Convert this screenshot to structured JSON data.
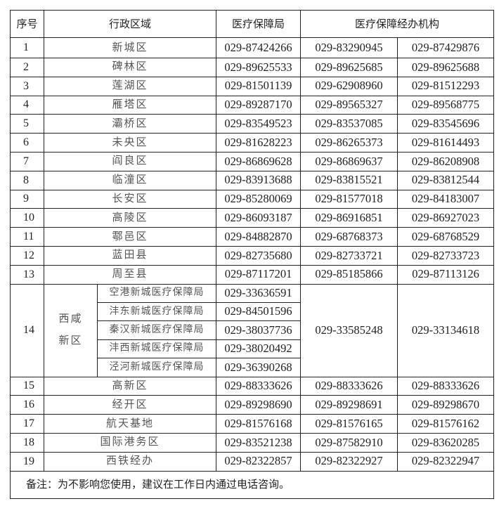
{
  "headers": {
    "index": "序号",
    "region": "行政区域",
    "bureau": "医疗保障局",
    "agency": "医疗保障经办机构"
  },
  "rows_before": [
    {
      "no": "1",
      "region": "新城区",
      "bureau": "029-87424266",
      "agency1": "029-83290945",
      "agency2": "029-87429876"
    },
    {
      "no": "2",
      "region": "碑林区",
      "bureau": "029-89625533",
      "agency1": "029-89625685",
      "agency2": "029-89625688"
    },
    {
      "no": "3",
      "region": "莲湖区",
      "bureau": "029-81501139",
      "agency1": "029-62908960",
      "agency2": "029-81512293"
    },
    {
      "no": "4",
      "region": "雁塔区",
      "bureau": "029-89287170",
      "agency1": "029-89565327",
      "agency2": "029-89568775"
    },
    {
      "no": "5",
      "region": "灞桥区",
      "bureau": "029-83549523",
      "agency1": "029-83537085",
      "agency2": "029-83545696"
    },
    {
      "no": "6",
      "region": "未央区",
      "bureau": "029-81628223",
      "agency1": "029-86265373",
      "agency2": "029-81614493"
    },
    {
      "no": "7",
      "region": "阎良区",
      "bureau": "029-86869628",
      "agency1": "029-86869637",
      "agency2": "029-86208908"
    },
    {
      "no": "8",
      "region": "临潼区",
      "bureau": "029-83913688",
      "agency1": "029-83815521",
      "agency2": "029-83812544"
    },
    {
      "no": "9",
      "region": "长安区",
      "bureau": "029-85280069",
      "agency1": "029-81577018",
      "agency2": "029-84183007"
    },
    {
      "no": "10",
      "region": "高陵区",
      "bureau": "029-86093187",
      "agency1": "029-86916851",
      "agency2": "029-86927023"
    },
    {
      "no": "11",
      "region": "鄠邑区",
      "bureau": "029-84882870",
      "agency1": "029-68768373",
      "agency2": "029-68768529"
    },
    {
      "no": "12",
      "region": "蓝田县",
      "bureau": "029-82735680",
      "agency1": "029-82733721",
      "agency2": "029-82733723"
    },
    {
      "no": "13",
      "region": "周至县",
      "bureau": "029-87117201",
      "agency1": "029-85185866",
      "agency2": "029-87113126"
    }
  ],
  "xixian": {
    "no": "14",
    "region_line1": "西咸",
    "region_line2": "新区",
    "agency1": "029-33585248",
    "agency2": "029-33134618",
    "subs": [
      {
        "name": "空港新城医疗保障局",
        "bureau": "029-33636591"
      },
      {
        "name": "沣东新城医疗保障局",
        "bureau": "029-84501596"
      },
      {
        "name": "秦汉新城医疗保障局",
        "bureau": "029-38037736"
      },
      {
        "name": "沣西新城医疗保障局",
        "bureau": "029-38020492"
      },
      {
        "name": "泾河新城医疗保障局",
        "bureau": "029-36390268"
      }
    ]
  },
  "rows_after": [
    {
      "no": "15",
      "region": "高新区",
      "bureau": "029-88333626",
      "agency1": "029-88333626",
      "agency2": "029-88333626"
    },
    {
      "no": "16",
      "region": "经开区",
      "bureau": "029-89298690",
      "agency1": "029-89298691",
      "agency2": "029-89298670"
    },
    {
      "no": "17",
      "region": "航天基地",
      "bureau": "029-81576168",
      "agency1": "029-81576165",
      "agency2": "029-81576162"
    },
    {
      "no": "18",
      "region": "国际港务区",
      "bureau": "029-83521238",
      "agency1": "029-87582910",
      "agency2": "029-83620285"
    },
    {
      "no": "19",
      "region": "西铁经办",
      "bureau": "029-82322857",
      "agency1": "029-82322927",
      "agency2": "029-82322947"
    }
  ],
  "note": "备注：为不影响您使用，建议在工作日内通过电话咨询。"
}
